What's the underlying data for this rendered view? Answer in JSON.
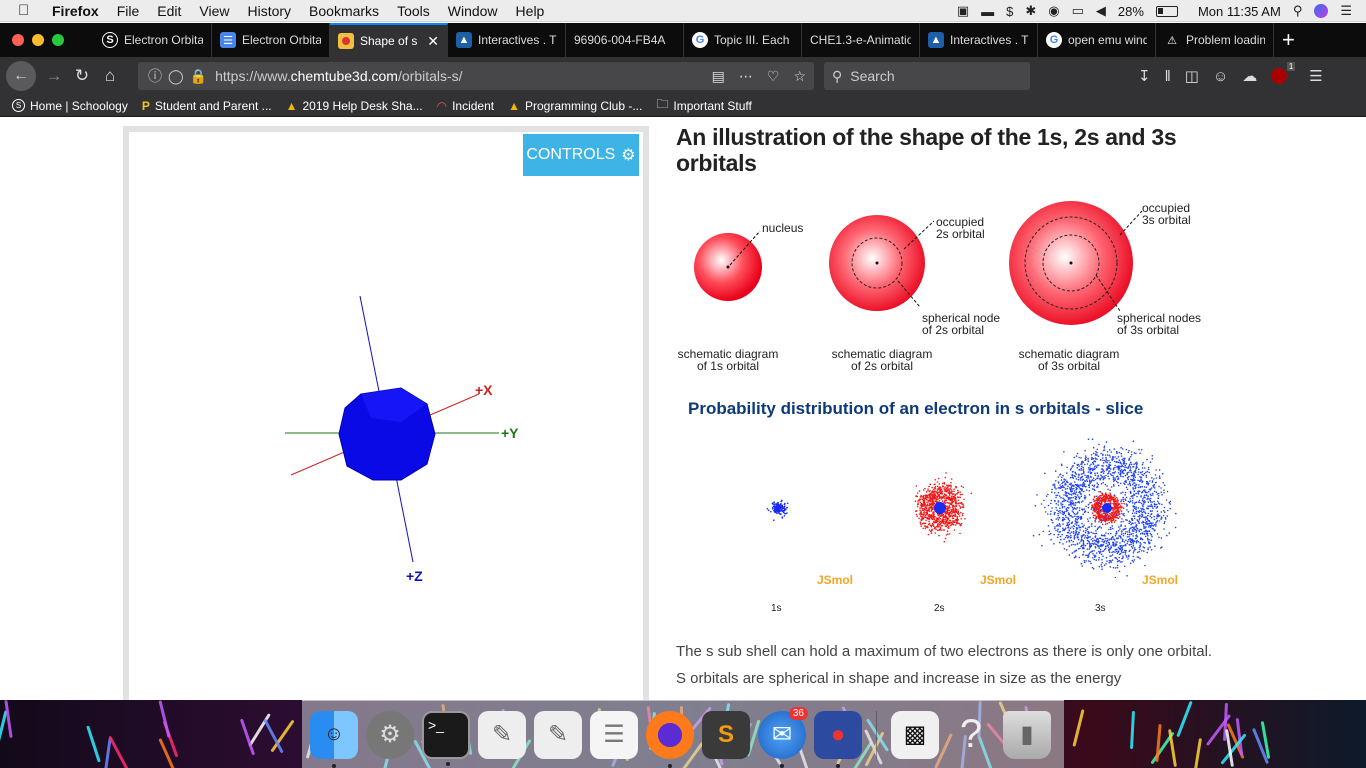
{
  "menubar": {
    "app": "Firefox",
    "items": [
      "File",
      "Edit",
      "View",
      "History",
      "Bookmarks",
      "Tools",
      "Window",
      "Help"
    ],
    "battery": "28%",
    "clock": "Mon 11:35 AM"
  },
  "tabs": [
    {
      "label": "Electron Orbita",
      "icon": "schoology-icon",
      "color": "#ffffff"
    },
    {
      "label": "Electron Orbita",
      "icon": "docs-icon",
      "color": "#4a86e8"
    },
    {
      "label": "Shape of s",
      "icon": "chemtube-icon",
      "color": "#f0c040",
      "active": true
    },
    {
      "label": "Interactives . T",
      "icon": "interactives-icon",
      "color": "#1e5fa8"
    },
    {
      "label": "96906-004-FB4A",
      "icon": "",
      "color": ""
    },
    {
      "label": "Topic III. Each",
      "icon": "google-icon",
      "color": "#ffffff"
    },
    {
      "label": "CHE1.3-e-Animatio",
      "icon": "",
      "color": ""
    },
    {
      "label": "Interactives . T",
      "icon": "interactives-icon",
      "color": "#1e5fa8"
    },
    {
      "label": "open emu wind",
      "icon": "google-icon",
      "color": "#ffffff"
    },
    {
      "label": "Problem loadin",
      "icon": "warning-icon",
      "color": "#ffffff"
    }
  ],
  "url": {
    "prefix": "https://www.",
    "host": "chemtube3d.com",
    "path": "/orbitals-s/"
  },
  "search": {
    "placeholder": "Search"
  },
  "ublock_count": "1",
  "bookmarks": [
    {
      "label": "Home | Schoology",
      "icon": "schoology-icon"
    },
    {
      "label": "Student and Parent ...",
      "icon": "p-icon"
    },
    {
      "label": "2019 Help Desk Sha...",
      "icon": "drive-icon"
    },
    {
      "label": "Incident",
      "icon": "incident-icon"
    },
    {
      "label": "Programming Club -...",
      "icon": "drive-icon"
    },
    {
      "label": "Important Stuff",
      "icon": "folder-icon"
    }
  ],
  "viewer": {
    "controls_label": "CONTROLS",
    "axis_x": "+X",
    "axis_y": "+Y",
    "axis_z": "+Z"
  },
  "article": {
    "title": "An illustration of the shape of the 1s, 2s and 3s orbitals",
    "diagram": {
      "nucleus": "nucleus",
      "occupied_2s_a": "occupied",
      "occupied_2s_b": "2s orbital",
      "occupied_3s_a": "occupied",
      "occupied_3s_b": "3s orbital",
      "node_2s_a": "spherical node",
      "node_2s_b": "of 2s orbital",
      "node_3s_a": "spherical nodes",
      "node_3s_b": "of 3s orbital",
      "cap1_a": "schematic diagram",
      "cap1_b": "of 1s orbital",
      "cap2_a": "schematic diagram",
      "cap2_b": "of 2s orbital",
      "cap3_a": "schematic diagram",
      "cap3_b": "of 3s orbital"
    },
    "prob_heading": "Probability distribution of an electron in s orbitals - slice",
    "jsmol": "JSmol",
    "orbital_labels": [
      "1s",
      "2s",
      "3s"
    ],
    "paragraph": "The s sub shell can hold a maximum of two electrons as there is only one orbital. S orbitals are spherical in shape and increase in size as the energy"
  },
  "dock": {
    "mail_badge": "36"
  }
}
